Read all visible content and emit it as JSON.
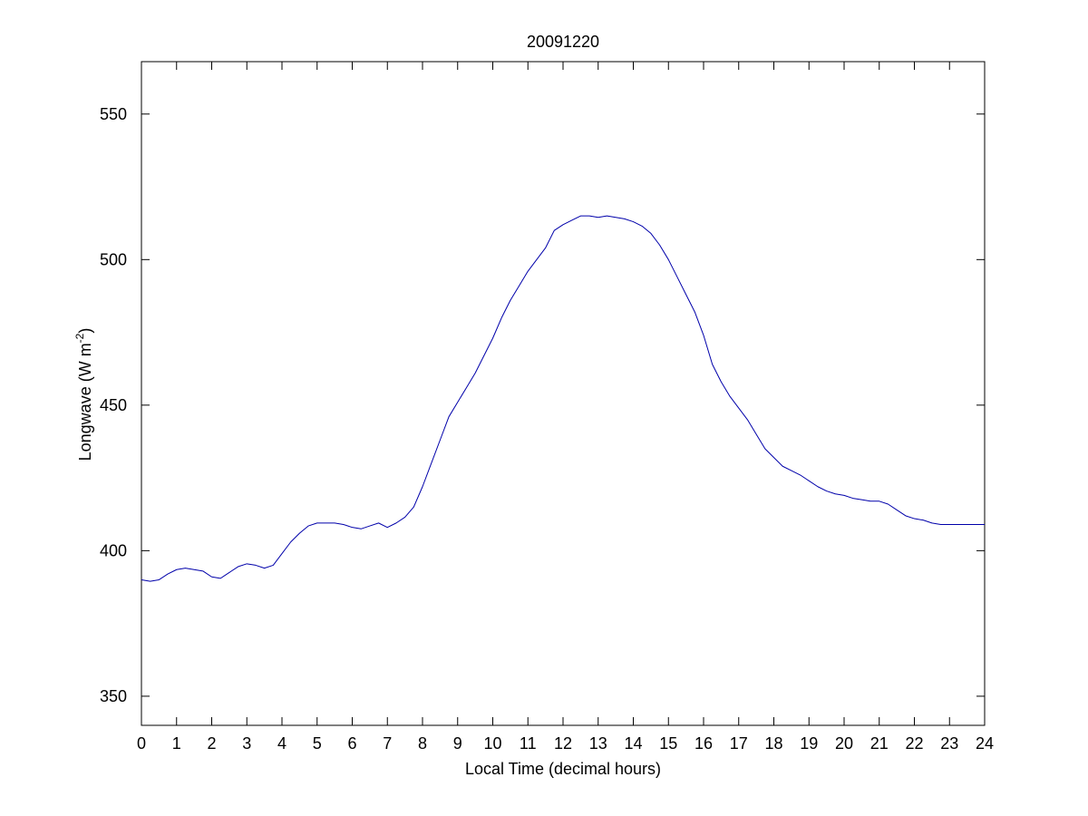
{
  "chart_data": {
    "type": "line",
    "title": "20091220",
    "xlabel": "Local Time (decimal hours)",
    "ylabel": {
      "main": "Longwave (W m",
      "superscript": "-2",
      "close": ")"
    },
    "xlim": [
      0,
      24
    ],
    "ylim": [
      340,
      568
    ],
    "xticks": [
      0,
      1,
      2,
      3,
      4,
      5,
      6,
      7,
      8,
      9,
      10,
      11,
      12,
      13,
      14,
      15,
      16,
      17,
      18,
      19,
      20,
      21,
      22,
      23,
      24
    ],
    "xtick_labels": [
      "0",
      "1",
      "2",
      "3",
      "4",
      "5",
      "6",
      "7",
      "8",
      "9",
      "10",
      "11",
      "12",
      "13",
      "14",
      "15",
      "16",
      "17",
      "18",
      "19",
      "20",
      "21",
      "22",
      "23",
      "24"
    ],
    "yticks": [
      350,
      400,
      450,
      500,
      550
    ],
    "ytick_labels": [
      "350",
      "400",
      "450",
      "500",
      "550"
    ],
    "grid": false,
    "line_color": "#0000aa",
    "series": [
      {
        "x": [
          0,
          0.25,
          0.5,
          0.75,
          1,
          1.25,
          1.5,
          1.75,
          2,
          2.25,
          2.5,
          2.75,
          3,
          3.25,
          3.5,
          3.75,
          4,
          4.25,
          4.5,
          4.75,
          5,
          5.25,
          5.5,
          5.75,
          6,
          6.25,
          6.5,
          6.75,
          7,
          7.25,
          7.5,
          7.75,
          8,
          8.25,
          8.5,
          8.75,
          9,
          9.25,
          9.5,
          9.75,
          10,
          10.25,
          10.5,
          10.75,
          11,
          11.25,
          11.5,
          11.75,
          12,
          12.25,
          12.5,
          12.75,
          13,
          13.25,
          13.5,
          13.75,
          14,
          14.25,
          14.5,
          14.75,
          15,
          15.25,
          15.5,
          15.75,
          16,
          16.25,
          16.5,
          16.75,
          17,
          17.25,
          17.5,
          17.75,
          18,
          18.25,
          18.5,
          18.75,
          19,
          19.25,
          19.5,
          19.75,
          20,
          20.25,
          20.5,
          20.75,
          21,
          21.25,
          21.5,
          21.75,
          22,
          22.25,
          22.5,
          22.75,
          23,
          23.25,
          23.5,
          23.75,
          24
        ],
        "y": [
          390,
          389.5,
          390,
          392,
          393.5,
          394,
          393.5,
          393,
          391,
          390.5,
          392.5,
          394.5,
          395.5,
          395,
          394,
          395,
          399,
          403,
          406,
          408.5,
          409.5,
          409.5,
          409.5,
          409,
          408,
          407.5,
          408.5,
          409.5,
          408,
          409.5,
          411.5,
          415,
          422,
          430,
          438,
          446,
          451,
          456,
          461,
          467,
          473,
          480,
          486,
          491,
          496,
          500,
          504,
          510,
          512,
          513.5,
          515,
          515,
          514.5,
          515,
          514.5,
          514,
          513,
          511.5,
          509,
          505,
          500,
          494,
          488,
          482,
          474,
          464,
          458,
          453,
          449,
          445,
          440,
          435,
          432,
          429,
          427.5,
          426,
          424,
          422,
          420.5,
          419.5,
          419,
          418,
          417.5,
          417,
          417,
          416,
          414,
          412,
          411,
          410.5,
          409.5,
          409,
          409,
          409,
          409,
          409,
          409
        ]
      }
    ]
  }
}
